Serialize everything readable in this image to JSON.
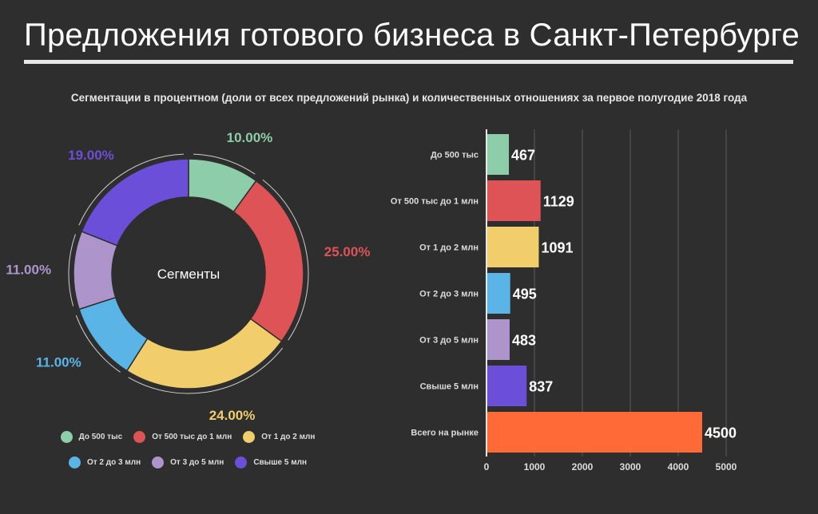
{
  "header": {
    "title": "Предложения готового бизнеса в Санкт-Петербурге",
    "subtitle": "Сегментации в процентном (доли от всех предложений рынка) и количественных отношениях за первое полугодие 2018 года"
  },
  "colors": {
    "background": "#2e2e2e",
    "segments": [
      "#8ecda9",
      "#de5356",
      "#f1cd6b",
      "#5ab5e6",
      "#ad95cc",
      "#6b4fd8",
      "#ff6a36"
    ],
    "grid": "#5a5a5a"
  },
  "chart_data": [
    {
      "type": "pie",
      "donut": true,
      "center_label": "Сегменты",
      "categories": [
        "До 500 тыс",
        "От 500 тыс до 1 млн",
        "От 1 до 2 млн",
        "От 2 до 3 млн",
        "От 3 до 5 млн",
        "Свыше 5 млн"
      ],
      "values": [
        10,
        25,
        24,
        11,
        11,
        19
      ],
      "value_labels": [
        "10.00%",
        "25.00%",
        "24.00%",
        "11.00%",
        "11.00%",
        "19.00%"
      ],
      "legend_position": "bottom"
    },
    {
      "type": "bar",
      "orientation": "horizontal",
      "categories": [
        "До 500 тыс",
        "От 500 тыс до 1 млн",
        "От 1 до 2 млн",
        "От 2 до 3 млн",
        "От 3 до 5 млн",
        "Свыше 5 млн",
        "Всего на рынке"
      ],
      "values": [
        467,
        1129,
        1091,
        495,
        483,
        837,
        4500
      ],
      "value_labels": [
        "467",
        "1129",
        "1091",
        "495",
        "483",
        "837",
        "4500"
      ],
      "xlim": [
        0,
        5000
      ],
      "x_ticks": [
        "0",
        "1000",
        "2000",
        "3000",
        "4000",
        "5000"
      ],
      "grid": true
    }
  ]
}
